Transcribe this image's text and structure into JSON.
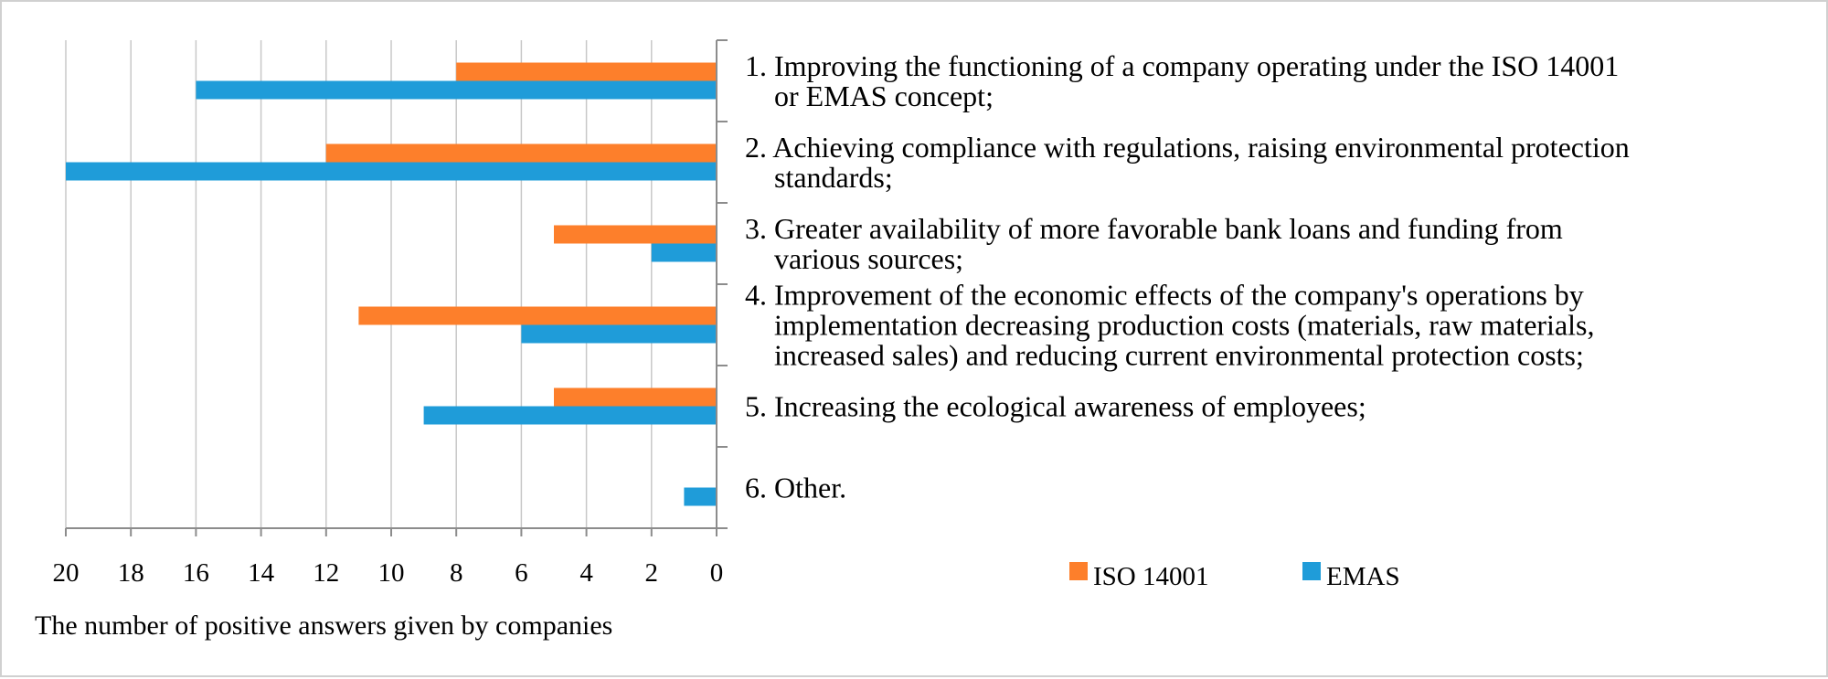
{
  "chart_data": {
    "type": "bar",
    "orientation": "horizontal",
    "x_axis_reversed": true,
    "xlabel": "The number of positive answers given by companies",
    "xlim": [
      0,
      20
    ],
    "xticks": [
      "20",
      "18",
      "16",
      "14",
      "12",
      "10",
      "8",
      "6",
      "4",
      "2",
      "0"
    ],
    "grid": true,
    "legend_position": "bottom-right",
    "categories": [
      [
        "1. Improving the functioning of a company operating under the ISO 14001",
        "or EMAS concept;"
      ],
      [
        "2. Achieving compliance with regulations, raising environmental protection",
        "standards;"
      ],
      [
        "3. Greater availability of more favorable bank loans and funding from",
        "various sources;"
      ],
      [
        "4. Improvement of the economic effects of the company's operations by",
        "implementation decreasing production costs (materials, raw materials,",
        "increased sales) and reducing current environmental protection costs;"
      ],
      [
        "5. Increasing the ecological awareness of employees;"
      ],
      [
        "6. Other."
      ]
    ],
    "series": [
      {
        "name": "ISO 14001",
        "color": "#fd7f2b",
        "values": [
          8,
          12,
          5,
          11,
          5,
          0
        ]
      },
      {
        "name": "EMAS",
        "color": "#1f9cd9",
        "values": [
          16,
          20,
          2,
          6,
          9,
          1
        ]
      }
    ]
  }
}
